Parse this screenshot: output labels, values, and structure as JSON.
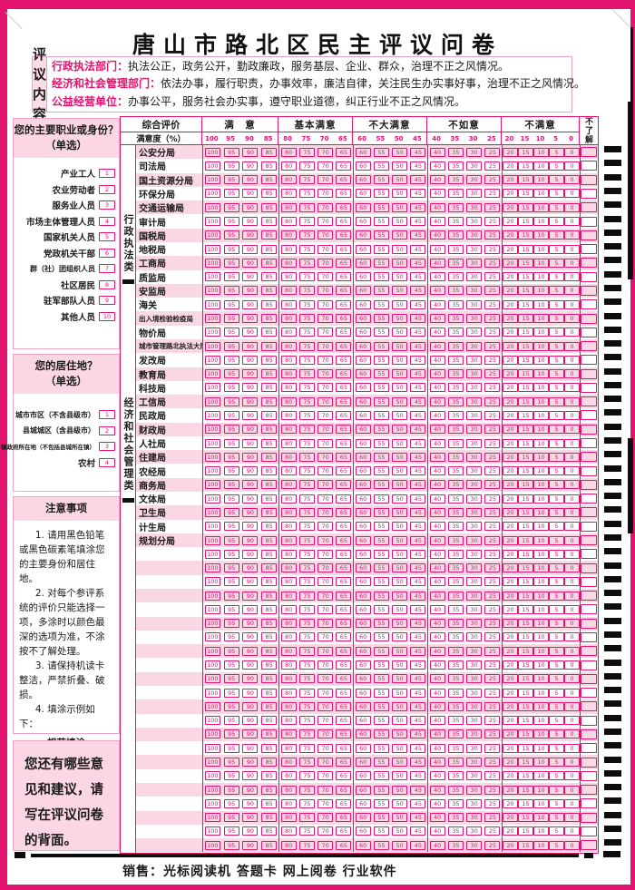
{
  "title": "唐山市路北区民主评议问卷",
  "eval_content": {
    "label_line1": "评议",
    "label_line2": "内容",
    "lines": [
      {
        "head": "行政执法部门：",
        "body": "执法公正，政务公开，勤政廉政，服务基层、企业、群众，治理不正之风情况。"
      },
      {
        "head": "经济和社会管理部门：",
        "body": "依法办事，履行职责，办事效率，廉洁自律，关注民生办实事好事，治理不正之风情况。"
      },
      {
        "head": "公益经营单位：",
        "body": "办事公平，服务社会办实事，遵守职业道德，纠正行业不正之风情况。"
      }
    ]
  },
  "sidebar": {
    "occupation": {
      "title": "您的主要职业或身份？",
      "subtitle": "（单选）",
      "options": [
        {
          "label": "产业工人",
          "code": "1"
        },
        {
          "label": "农业劳动者",
          "code": "2"
        },
        {
          "label": "服务业人员",
          "code": "3"
        },
        {
          "label": "市场主体管理人员",
          "code": "4"
        },
        {
          "label": "国家机关人员",
          "code": "5"
        },
        {
          "label": "党政机关干部",
          "code": "6"
        },
        {
          "label": "群（社）团组织人员",
          "code": "7"
        },
        {
          "label": "社区居民",
          "code": "8"
        },
        {
          "label": "驻军部队人员",
          "code": "9"
        },
        {
          "label": "其他人员",
          "code": "10"
        }
      ]
    },
    "residence": {
      "title": "您的居住地？",
      "subtitle": "（单选）",
      "options": [
        {
          "label": "城市市区（不含县级市）",
          "code": "1"
        },
        {
          "label": "县城城区（含县级市）",
          "code": "2"
        },
        {
          "label": "乡镇政府所在地（不包括县城所在镇）",
          "code": "3"
        },
        {
          "label": "农村",
          "code": "4"
        }
      ]
    },
    "notes": {
      "title": "注意事项",
      "items": [
        "1. 请用黑色铅笔或黑色碳素笔填涂您的主要身份和居住地。",
        "2. 对每个参评系统的评价只能选择一项，多涂时以颜色最深的选项为准，不涂按不了解处理。",
        "3. 请保持机读卡整洁，严禁折叠、破损。",
        "4. 填涂示例如下："
      ],
      "good_label": "规范填涂",
      "bad_label": "不规范填涂",
      "good_marks": [
        "filled-ellipse",
        "outline-ellipse",
        "thick-bar",
        "filled-square"
      ],
      "bad_marks": [
        "check-box",
        "x-box",
        "underline-box",
        "dot-box"
      ]
    },
    "suggestion": "您还有哪些意见和建议，请写在评议问卷的背面。"
  },
  "table": {
    "header": {
      "col_main": "综合评价",
      "col_sub": "满意度（%）",
      "unknown": "不了解",
      "sections": [
        {
          "label": "满　意",
          "values": [
            "100",
            "95",
            "90",
            "85"
          ]
        },
        {
          "label": "基本满意",
          "values": [
            "80",
            "75",
            "70",
            "65"
          ]
        },
        {
          "label": "不大满意",
          "values": [
            "60",
            "55",
            "50",
            "45"
          ]
        },
        {
          "label": "不如意",
          "values": [
            "40",
            "35",
            "30",
            "25"
          ]
        },
        {
          "label": "不满意",
          "values": [
            "20",
            "15",
            "10",
            "5",
            "0"
          ]
        }
      ]
    },
    "groups": [
      {
        "label": "行政执法类",
        "rows": [
          "公安分局",
          "司法局",
          "国土资源分局",
          "环保分局",
          "交通运输局",
          "审计局",
          "国税局",
          "地税局",
          "工商局",
          "质监局",
          "安监局",
          "海关",
          "出入境检验检疫局",
          "物价局",
          "城市管理路北执法大队"
        ]
      },
      {
        "label": "经济和社会管理类",
        "rows": [
          "发改局",
          "教育局",
          "科技局",
          "工信局",
          "民政局",
          "财政局",
          "人社局",
          "住建局",
          "农经局",
          "商务局",
          "文体局",
          "卫生局",
          "计生局",
          "规划分局"
        ]
      },
      {
        "label": "",
        "rows": []
      }
    ],
    "blank_row_count": 22
  },
  "footer": "销售：光标阅读机 答题卡 网上阅卷 行业软件",
  "colors": {
    "magenta": "#e3146f",
    "pink_row": "#fad7e5",
    "pink_band": "#fbd7e6",
    "black": "#0d0d0d"
  }
}
